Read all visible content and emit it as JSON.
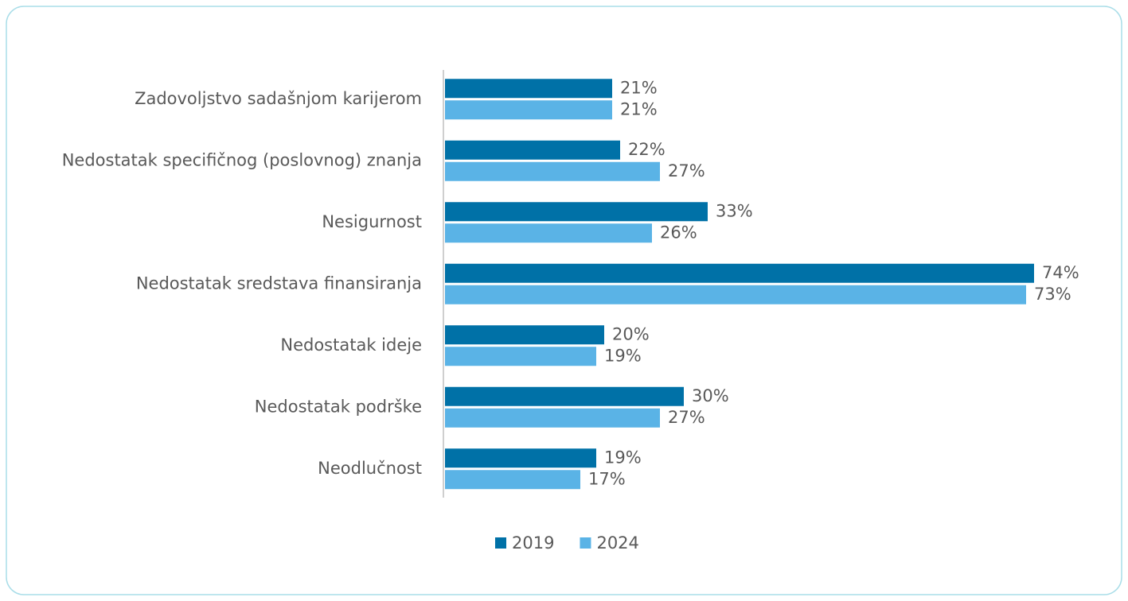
{
  "chart_data": {
    "type": "hbar",
    "categories": [
      "Zadovoljstvo sadašnjom karijerom",
      "Nedostatak specifičnog (poslovnog) znanja",
      "Nesigurnost",
      "Nedostatak sredstava finansiranja",
      "Nedostatak ideje",
      "Nedostatak podrške",
      "Neodlučnost"
    ],
    "series": [
      {
        "name": "2019",
        "color": "#0071a7",
        "values": [
          21,
          22,
          33,
          74,
          20,
          30,
          19
        ],
        "value_labels": [
          "21%",
          "22%",
          "33%",
          "74%",
          "20%",
          "30%",
          "19%"
        ]
      },
      {
        "name": "2024",
        "color": "#5ab3e6",
        "values": [
          21,
          27,
          26,
          73,
          19,
          27,
          17
        ],
        "value_labels": [
          "21%",
          "27%",
          "26%",
          "73%",
          "19%",
          "27%",
          "17%"
        ]
      }
    ],
    "xlim": [
      0,
      84
    ],
    "legend": "bottom"
  }
}
